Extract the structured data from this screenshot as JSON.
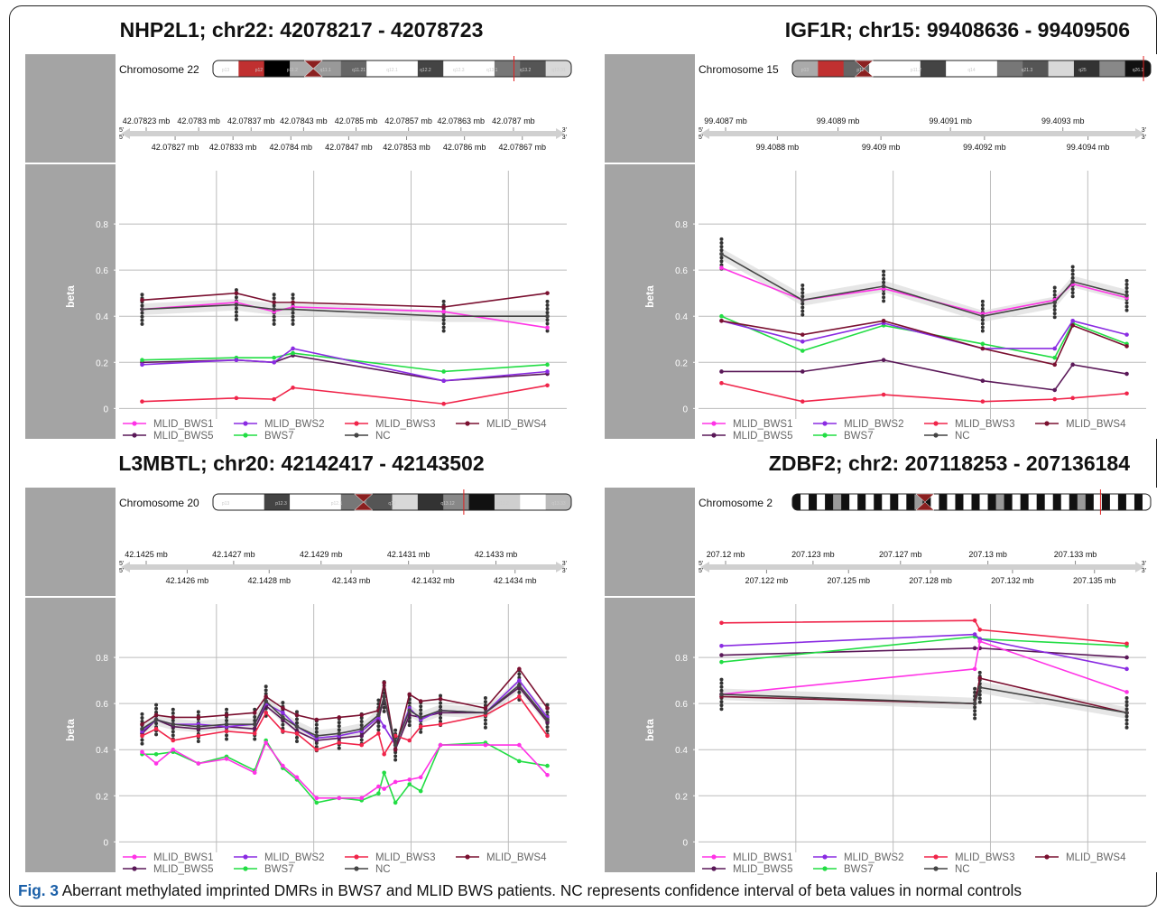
{
  "caption": {
    "fig_label": "Fig. 3",
    "text": "Aberrant methylated imprinted DMRs in BWS7 and MLID BWS patients. NC represents confidence interval of beta values in normal controls"
  },
  "series_colors": {
    "MLID_BWS1": "#ff33e6",
    "MLID_BWS2": "#8a2be2",
    "MLID_BWS3": "#f0254a",
    "MLID_BWS4": "#7a1030",
    "MLID_BWS5": "#5a1858",
    "BWS7": "#22dd44",
    "NC": "#444444"
  },
  "legend": [
    "MLID_BWS1",
    "MLID_BWS2",
    "MLID_BWS3",
    "MLID_BWS4",
    "MLID_BWS5",
    "BWS7",
    "NC"
  ],
  "strip_label": "beta",
  "chart_data": [
    {
      "type": "line",
      "title": "NHP2L1; chr22: 42078217 - 42078723",
      "chromosome": "Chromosome 22",
      "ideogram_labels": [
        "p13",
        "p12",
        "p11.2",
        "q11.1",
        "q11.21",
        "q12.1",
        "q12.2",
        "q12.3",
        "q13.1",
        "q13.2",
        "q13.31"
      ],
      "genome_ticks_top": [
        "42.07823 mb",
        "42.0783 mb",
        "42.07837 mb",
        "42.07843 mb",
        "42.0785 mb",
        "42.07857 mb",
        "42.07863 mb",
        "42.0787 mb"
      ],
      "genome_ticks_bottom": [
        "42.07827 mb",
        "42.07833 mb",
        "42.0784 mb",
        "42.07847 mb",
        "42.07853 mb",
        "42.0786 mb",
        "42.07867 mb"
      ],
      "ylabel": "beta",
      "yticks": [
        0,
        0.2,
        0.4,
        0.6,
        0.8
      ],
      "ylim": [
        -0.03,
        1.0
      ],
      "grid": true,
      "x": [
        1,
        2,
        2.4,
        2.6,
        4.2,
        5.3
      ],
      "series": [
        {
          "name": "MLID_BWS1",
          "values": [
            0.43,
            0.46,
            0.42,
            0.44,
            0.42,
            0.35
          ]
        },
        {
          "name": "MLID_BWS2",
          "values": [
            0.19,
            0.21,
            0.2,
            0.26,
            0.12,
            0.16
          ]
        },
        {
          "name": "MLID_BWS3",
          "values": [
            0.03,
            0.045,
            0.04,
            0.09,
            0.02,
            0.1
          ]
        },
        {
          "name": "MLID_BWS4",
          "values": [
            0.47,
            0.5,
            0.46,
            0.46,
            0.44,
            0.5
          ]
        },
        {
          "name": "MLID_BWS5",
          "values": [
            0.2,
            0.21,
            0.2,
            0.23,
            0.12,
            0.15
          ]
        },
        {
          "name": "BWS7",
          "values": [
            0.21,
            0.22,
            0.22,
            0.24,
            0.16,
            0.19
          ]
        },
        {
          "name": "NC",
          "values": [
            0.43,
            0.45,
            0.43,
            0.43,
            0.4,
            0.4
          ]
        }
      ]
    },
    {
      "type": "line",
      "title": "IGF1R; chr15: 99408636 - 99409506",
      "chromosome": "Chromosome 15",
      "ideogram_labels": [
        "p13",
        "p12",
        "p11.2",
        "q14",
        "q21.3",
        "q25",
        "q26.1"
      ],
      "genome_ticks_top": [
        "99.4087 mb",
        "99.4089 mb",
        "99.4091 mb",
        "99.4093 mb"
      ],
      "genome_ticks_bottom": [
        "99.4088 mb",
        "99.409 mb",
        "99.4092 mb",
        "99.4094 mb"
      ],
      "ylabel": "beta",
      "yticks": [
        0,
        0.2,
        0.4,
        0.6,
        0.8
      ],
      "ylim": [
        -0.03,
        1.0
      ],
      "grid": true,
      "x": [
        1,
        1.9,
        2.8,
        3.9,
        4.7,
        4.9,
        5.5
      ],
      "series": [
        {
          "name": "MLID_BWS1",
          "values": [
            0.61,
            0.47,
            0.52,
            0.41,
            0.47,
            0.54,
            0.48
          ]
        },
        {
          "name": "MLID_BWS2",
          "values": [
            0.38,
            0.29,
            0.37,
            0.26,
            0.26,
            0.38,
            0.32
          ]
        },
        {
          "name": "MLID_BWS3",
          "values": [
            0.11,
            0.03,
            0.06,
            0.03,
            0.04,
            0.045,
            0.065
          ]
        },
        {
          "name": "MLID_BWS4",
          "values": [
            0.38,
            0.32,
            0.38,
            0.26,
            0.19,
            0.36,
            0.27
          ]
        },
        {
          "name": "MLID_BWS5",
          "values": [
            0.16,
            0.16,
            0.21,
            0.12,
            0.08,
            0.19,
            0.15
          ]
        },
        {
          "name": "BWS7",
          "values": [
            0.4,
            0.25,
            0.36,
            0.28,
            0.22,
            0.37,
            0.28
          ]
        },
        {
          "name": "NC",
          "values": [
            0.67,
            0.47,
            0.53,
            0.4,
            0.46,
            0.55,
            0.49
          ]
        }
      ]
    },
    {
      "type": "line",
      "title": "L3MBTL; chr20: 42142417 - 42143502",
      "chromosome": "Chromosome 20",
      "ideogram_labels": [
        "p13",
        "p12.3",
        "p12.1",
        "q12",
        "q13.12",
        "q13.2",
        "q13.33"
      ],
      "genome_ticks_top": [
        "42.1425 mb",
        "42.1427 mb",
        "42.1429 mb",
        "42.1431 mb",
        "42.1433 mb"
      ],
      "genome_ticks_bottom": [
        "42.1426 mb",
        "42.1428 mb",
        "42.143 mb",
        "42.1432 mb",
        "42.1434 mb"
      ],
      "ylabel": "beta",
      "yticks": [
        0,
        0.2,
        0.4,
        0.6,
        0.8
      ],
      "ylim": [
        -0.03,
        1.0
      ],
      "grid": true,
      "x": [
        1.0,
        1.25,
        1.55,
        2.0,
        2.5,
        3.0,
        3.2,
        3.5,
        3.75,
        4.1,
        4.5,
        4.9,
        5.2,
        5.3,
        5.5,
        5.75,
        5.95,
        6.3,
        7.1,
        7.7,
        8.2
      ],
      "series": [
        {
          "name": "MLID_BWS1",
          "values": [
            0.39,
            0.34,
            0.4,
            0.34,
            0.36,
            0.3,
            0.43,
            0.33,
            0.28,
            0.19,
            0.19,
            0.19,
            0.24,
            0.23,
            0.26,
            0.27,
            0.28,
            0.42,
            0.42,
            0.42,
            0.29
          ]
        },
        {
          "name": "MLID_BWS2",
          "values": [
            0.48,
            0.53,
            0.51,
            0.51,
            0.5,
            0.51,
            0.6,
            0.56,
            0.5,
            0.45,
            0.46,
            0.48,
            0.54,
            0.5,
            0.42,
            0.58,
            0.53,
            0.57,
            0.56,
            0.7,
            0.54
          ]
        },
        {
          "name": "MLID_BWS3",
          "values": [
            0.46,
            0.49,
            0.44,
            0.46,
            0.48,
            0.47,
            0.56,
            0.48,
            0.47,
            0.4,
            0.43,
            0.42,
            0.47,
            0.38,
            0.46,
            0.44,
            0.5,
            0.51,
            0.55,
            0.63,
            0.46
          ]
        },
        {
          "name": "MLID_BWS4",
          "values": [
            0.51,
            0.55,
            0.54,
            0.54,
            0.55,
            0.56,
            0.63,
            0.58,
            0.55,
            0.53,
            0.54,
            0.55,
            0.57,
            0.69,
            0.4,
            0.64,
            0.61,
            0.62,
            0.58,
            0.75,
            0.58
          ]
        },
        {
          "name": "MLID_BWS5",
          "values": [
            0.47,
            0.53,
            0.5,
            0.49,
            0.5,
            0.49,
            0.59,
            0.53,
            0.48,
            0.44,
            0.45,
            0.46,
            0.53,
            0.63,
            0.4,
            0.55,
            0.54,
            0.56,
            0.56,
            0.67,
            0.52
          ]
        },
        {
          "name": "BWS7",
          "values": [
            0.38,
            0.38,
            0.39,
            0.34,
            0.37,
            0.31,
            0.44,
            0.32,
            0.27,
            0.17,
            0.19,
            0.18,
            0.21,
            0.3,
            0.17,
            0.25,
            0.22,
            0.42,
            0.43,
            0.35,
            0.33
          ]
        },
        {
          "name": "NC",
          "values": [
            0.49,
            0.53,
            0.51,
            0.5,
            0.51,
            0.51,
            0.61,
            0.54,
            0.5,
            0.46,
            0.47,
            0.49,
            0.55,
            0.63,
            0.42,
            0.57,
            0.54,
            0.57,
            0.56,
            0.68,
            0.53
          ]
        }
      ]
    },
    {
      "type": "line",
      "title": "ZDBF2; chr2: 207118253 - 207136184",
      "chromosome": "Chromosome 2",
      "ideogram_labels": [],
      "genome_ticks_top": [
        "207.12 mb",
        "207.123 mb",
        "207.127 mb",
        "207.13 mb",
        "207.133 mb"
      ],
      "genome_ticks_bottom": [
        "207.122 mb",
        "207.125 mb",
        "207.128 mb",
        "207.132 mb",
        "207.135 mb"
      ],
      "ylabel": "beta",
      "yticks": [
        0,
        0.2,
        0.4,
        0.6,
        0.8
      ],
      "ylim": [
        -0.03,
        1.0
      ],
      "grid": true,
      "x": [
        1,
        3.5,
        3.55,
        5.0
      ],
      "series": [
        {
          "name": "MLID_BWS1",
          "values": [
            0.64,
            0.75,
            0.87,
            0.65
          ]
        },
        {
          "name": "MLID_BWS2",
          "values": [
            0.85,
            0.9,
            0.88,
            0.75
          ]
        },
        {
          "name": "MLID_BWS3",
          "values": [
            0.95,
            0.96,
            0.92,
            0.86
          ]
        },
        {
          "name": "MLID_BWS4",
          "values": [
            0.63,
            0.6,
            0.71,
            0.56
          ]
        },
        {
          "name": "MLID_BWS5",
          "values": [
            0.81,
            0.84,
            0.84,
            0.8
          ]
        },
        {
          "name": "BWS7",
          "values": [
            0.78,
            0.89,
            0.88,
            0.85
          ]
        },
        {
          "name": "NC",
          "values": [
            0.64,
            0.6,
            0.67,
            0.56
          ]
        }
      ]
    }
  ]
}
